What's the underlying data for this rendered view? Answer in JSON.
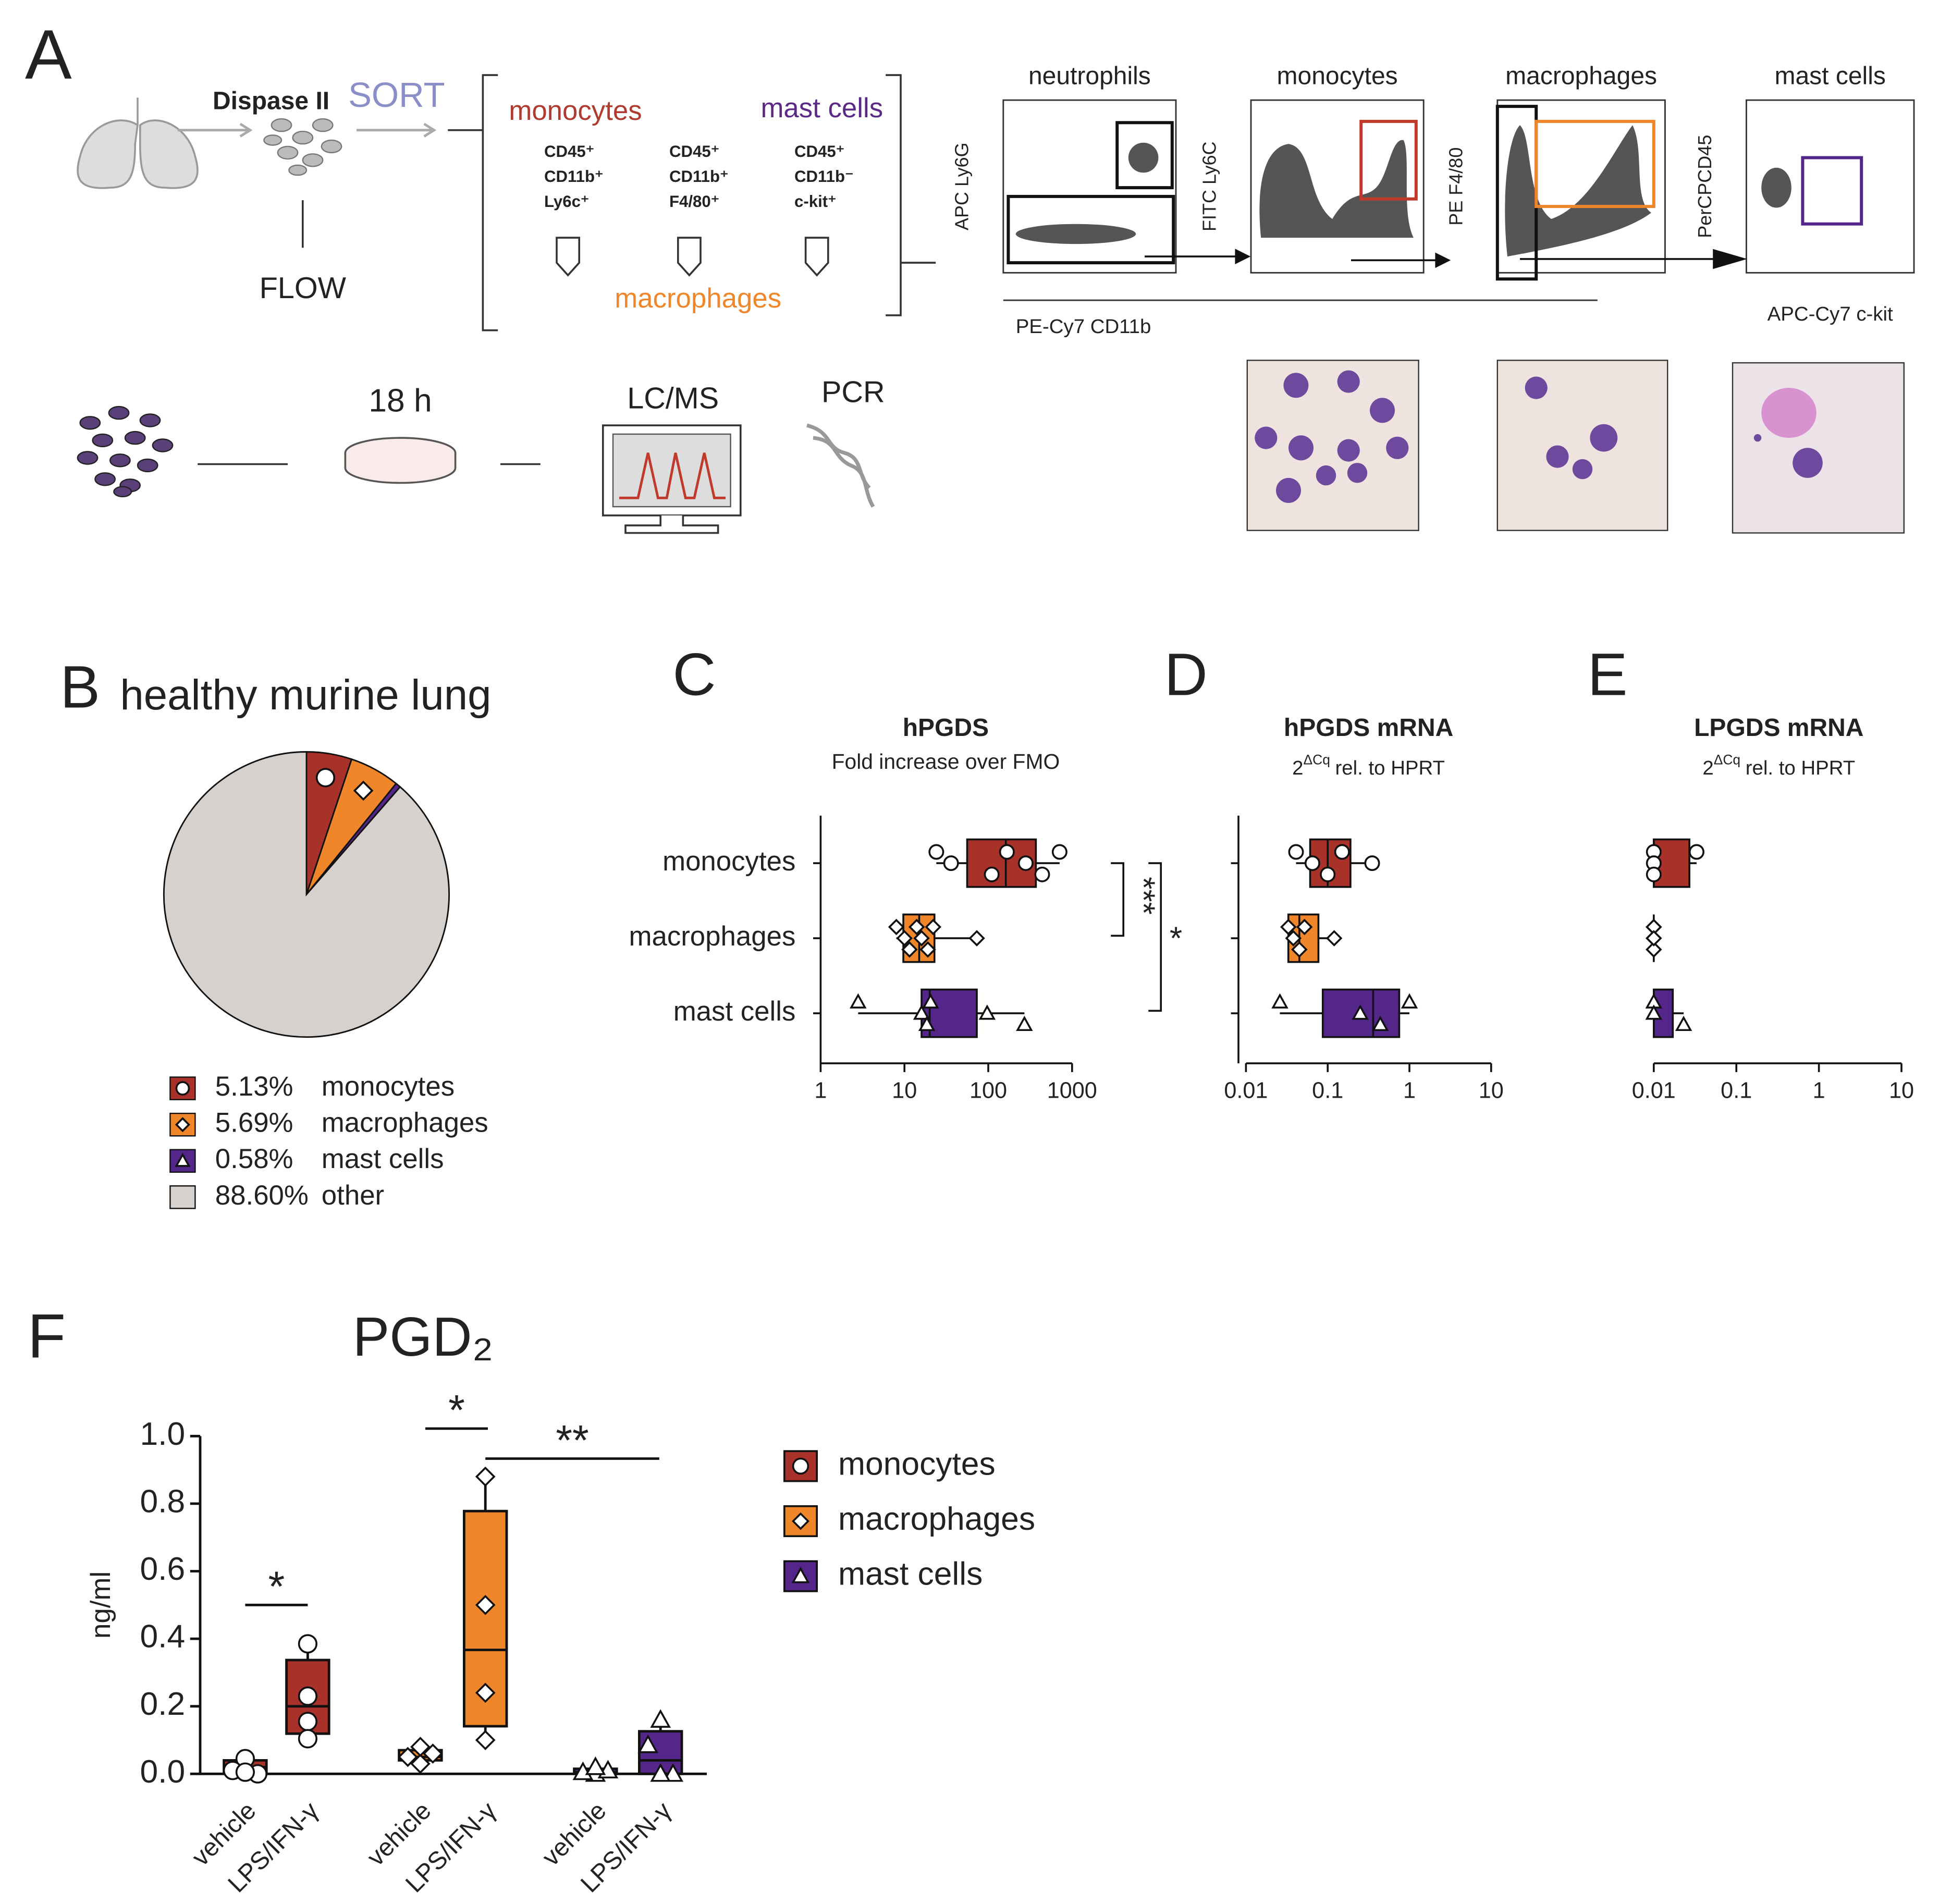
{
  "panel_a": {
    "letter": "A",
    "digest": "Dispase II",
    "sort": "SORT",
    "flow": "FLOW",
    "populations": [
      {
        "name": "monocytes",
        "markers": [
          "CD45⁺",
          "CD11b⁺",
          "Ly6c⁺"
        ]
      },
      {
        "name": "macrophages",
        "markers": [
          "CD45⁺",
          "CD11b⁺",
          "F4/80⁺"
        ]
      },
      {
        "name": "mast cells",
        "markers": [
          "CD45⁺",
          "CD11b⁻",
          "c-kit⁺"
        ]
      }
    ],
    "steps": [
      "18 h",
      "LC/MS",
      "PCR"
    ],
    "gates": [
      {
        "title": "neutrophils",
        "y_label": "APC Ly6G"
      },
      {
        "title": "monocytes",
        "y_label": "FITC Ly6C"
      },
      {
        "title": "macrophages",
        "y_label": "PE F4/80"
      },
      {
        "title": "mast cells",
        "y_label": "PerCPCD45",
        "x_label": "APC-Cy7 c-kit"
      }
    ],
    "shared_x_label": "PE-Cy7 CD11b"
  },
  "chart_data": [
    {
      "type": "pie",
      "panel": "B",
      "title": "healthy murine lung",
      "categories": [
        "monocytes",
        "macrophages",
        "mast cells",
        "other"
      ],
      "values": [
        5.13,
        5.69,
        0.58,
        88.6
      ],
      "value_labels": [
        "5.13%",
        "5.69%",
        "0.58%",
        "88.60%"
      ],
      "colors": [
        "#a8322a",
        "#f0862a",
        "#55268a",
        "#d6d1cd"
      ]
    },
    {
      "type": "hbox",
      "panel": "C",
      "title": "hPGDS",
      "subtitle": "Fold increase over FMO",
      "log_x": true,
      "xlim": [
        1,
        1000
      ],
      "xticks": [
        1,
        10,
        100,
        1000
      ],
      "categories": [
        "monocytes",
        "macrophages",
        "mast cells"
      ],
      "boxes": [
        {
          "color": "#a8322a",
          "marker": "circle",
          "min": 24,
          "q1": 56,
          "median": 162,
          "q3": 370,
          "max": 710,
          "points": [
            24,
            36,
            110,
            167,
            280,
            440,
            710
          ]
        },
        {
          "color": "#f0862a",
          "marker": "diamond",
          "min": 8,
          "q1": 9.7,
          "median": 15,
          "q3": 22.8,
          "max": 73,
          "points": [
            8,
            10,
            11.5,
            14,
            16,
            19,
            22,
            73
          ]
        },
        {
          "color": "#55268a",
          "marker": "triangle",
          "min": 2.8,
          "q1": 16,
          "median": 20,
          "q3": 73,
          "max": 270,
          "points": [
            2.8,
            16,
            18.5,
            20.5,
            97,
            270
          ]
        }
      ],
      "annotations": [
        "***",
        "*"
      ]
    },
    {
      "type": "hbox",
      "panel": "D",
      "title": "hPGDS mRNA",
      "subtitle_base": "2",
      "subtitle_sup": "ΔCq",
      "subtitle_rest": "rel. to HPRT",
      "log_x": true,
      "xlim": [
        0.01,
        10
      ],
      "xticks": [
        0.01,
        0.1,
        1,
        10
      ],
      "boxes": [
        {
          "color": "#a8322a",
          "marker": "circle",
          "min": 0.041,
          "q1": 0.061,
          "median": 0.1,
          "q3": 0.19,
          "max": 0.35,
          "points": [
            0.041,
            0.065,
            0.1,
            0.15,
            0.35
          ]
        },
        {
          "color": "#f0862a",
          "marker": "diamond",
          "min": 0.033,
          "q1": 0.033,
          "median": 0.045,
          "q3": 0.077,
          "max": 0.12,
          "points": [
            0.033,
            0.038,
            0.045,
            0.052,
            0.12
          ]
        },
        {
          "color": "#55268a",
          "marker": "triangle",
          "min": 0.026,
          "q1": 0.087,
          "median": 0.36,
          "q3": 0.75,
          "max": 1.0,
          "points": [
            0.026,
            0.25,
            0.44,
            1.0
          ]
        }
      ]
    },
    {
      "type": "hbox",
      "panel": "E",
      "title": "LPGDS mRNA",
      "subtitle_base": "2",
      "subtitle_sup": "ΔCq",
      "subtitle_rest": "rel. to HPRT",
      "log_x": true,
      "xlim": [
        0.01,
        10
      ],
      "xticks": [
        0.01,
        0.1,
        1,
        10
      ],
      "boxes": [
        {
          "color": "#a8322a",
          "marker": "circle",
          "min": 0.01,
          "q1": 0.01,
          "median": 0.01,
          "q3": 0.027,
          "max": 0.033,
          "points": [
            0.01,
            0.01,
            0.01,
            0.033
          ]
        },
        {
          "color": "#f0862a",
          "marker": "diamond",
          "min": 0.01,
          "q1": 0.01,
          "median": 0.01,
          "q3": 0.01,
          "max": 0.01,
          "points": [
            0.01,
            0.01,
            0.01,
            0.01,
            0.01
          ]
        },
        {
          "color": "#55268a",
          "marker": "triangle",
          "min": 0.01,
          "q1": 0.01,
          "median": 0.01,
          "q3": 0.017,
          "max": 0.023,
          "points": [
            0.01,
            0.01,
            0.023
          ]
        }
      ]
    },
    {
      "type": "vbox",
      "panel": "F",
      "title": "PGD₂",
      "ylabel": "ng/ml",
      "ylim": [
        0,
        1
      ],
      "yticks": [
        {
          "value": 0,
          "label": "0.0"
        },
        0.2,
        0.4,
        0.6,
        0.8,
        {
          "value": 1,
          "label": "1.0"
        }
      ],
      "categories": [
        "vehicle",
        "LPS/IFN-γ",
        "vehicle",
        "LPS/IFN-γ",
        "vehicle",
        "LPS/IFN-γ"
      ],
      "series": [
        {
          "name": "monocytes",
          "color": "#a8322a",
          "marker": "circle"
        },
        {
          "name": "macrophages",
          "color": "#f0862a",
          "marker": "diamond"
        },
        {
          "name": "mast cells",
          "color": "#55268a",
          "marker": "triangle"
        }
      ],
      "boxes": [
        {
          "min": 0,
          "q1": 0.005,
          "median": 0.02,
          "q3": 0.04,
          "max": 0.045,
          "points": [
            0.045,
            0.01,
            0.0,
            0.005
          ]
        },
        {
          "min": 0.104,
          "q1": 0.119,
          "median": 0.2,
          "q3": 0.337,
          "max": 0.385,
          "points": [
            0.385,
            0.23,
            0.155,
            0.104
          ]
        },
        {
          "min": 0.03,
          "q1": 0.04,
          "median": 0.05,
          "q3": 0.07,
          "max": 0.08,
          "points": [
            0.03,
            0.05,
            0.06,
            0.08
          ]
        },
        {
          "min": 0.1,
          "q1": 0.141,
          "median": 0.367,
          "q3": 0.778,
          "max": 0.88,
          "points": [
            0.88,
            0.5,
            0.24,
            0.1
          ]
        },
        {
          "min": 0,
          "q1": 0.0,
          "median": 0.005,
          "q3": 0.015,
          "max": 0.02,
          "points": [
            0.0,
            0.005,
            0.01,
            0.02
          ]
        },
        {
          "min": 0,
          "q1": 0.0,
          "median": 0.04,
          "q3": 0.126,
          "max": 0.16,
          "points": [
            0.16,
            0.085,
            0.0,
            0.0
          ]
        }
      ],
      "annotations": [
        "*",
        "*",
        "**"
      ]
    }
  ]
}
